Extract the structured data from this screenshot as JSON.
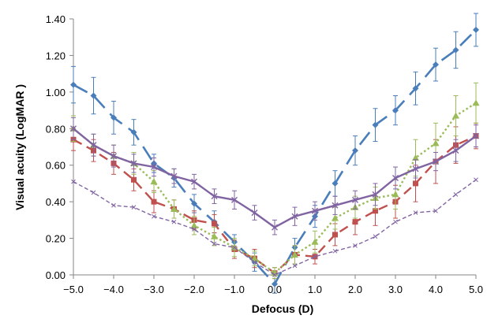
{
  "chart_data": {
    "type": "line",
    "xlabel": "Defocus (D)",
    "ylabel": "Visual acuity (LogMAR )",
    "xlim": [
      -5.0,
      5.0
    ],
    "ylim": [
      0.0,
      1.4
    ],
    "grid": false,
    "legend": "none",
    "x_tick_labels": [
      "−5.0",
      "−4.0",
      "−3.0",
      "−2.0",
      "−1.0",
      "0.0",
      "1.0",
      "2.0",
      "3.0",
      "4.0",
      "5.0"
    ],
    "y_tick_labels": [
      "0.00",
      "0.20",
      "0.40",
      "0.60",
      "0.80",
      "1.00",
      "1.20",
      "1.40"
    ],
    "x": [
      -5.0,
      -4.5,
      -4.0,
      -3.5,
      -3.0,
      -2.5,
      -2.0,
      -1.5,
      -1.0,
      -0.5,
      0.0,
      0.5,
      1.0,
      1.5,
      2.0,
      2.5,
      3.0,
      3.5,
      4.0,
      4.5,
      5.0
    ],
    "series": [
      {
        "color": "#4a7ebb",
        "dash": "long-dash",
        "marker": "diamond",
        "values": [
          1.04,
          0.98,
          0.86,
          0.78,
          0.61,
          0.53,
          0.39,
          0.29,
          0.18,
          0.07,
          -0.05,
          0.15,
          0.32,
          0.5,
          0.68,
          0.82,
          0.9,
          1.02,
          1.15,
          1.23,
          1.34
        ],
        "errors": [
          0.1,
          0.1,
          0.09,
          0.07,
          0.05,
          0.05,
          0.05,
          0.06,
          0.04,
          0.05,
          0.05,
          0.05,
          0.06,
          0.07,
          0.08,
          0.09,
          0.08,
          0.09,
          0.09,
          0.1,
          0.09
        ]
      },
      {
        "color": "#c0504d",
        "dash": "dash",
        "marker": "square",
        "values": [
          0.74,
          0.68,
          0.61,
          0.52,
          0.4,
          0.36,
          0.3,
          0.28,
          0.14,
          0.09,
          0.01,
          0.11,
          0.1,
          0.22,
          0.29,
          0.35,
          0.4,
          0.5,
          0.62,
          0.71,
          0.76
        ],
        "errors": [
          0.06,
          0.06,
          0.06,
          0.06,
          0.06,
          0.05,
          0.05,
          0.05,
          0.05,
          0.05,
          0.03,
          0.05,
          0.04,
          0.06,
          0.07,
          0.08,
          0.09,
          0.1,
          0.12,
          0.1,
          0.07
        ]
      },
      {
        "color": "#9bbb59",
        "dash": "dot",
        "marker": "triangle",
        "values": [
          0.8,
          0.71,
          0.65,
          0.61,
          0.51,
          0.36,
          0.27,
          0.21,
          0.15,
          0.09,
          0.01,
          0.11,
          0.18,
          0.31,
          0.37,
          0.42,
          0.44,
          0.64,
          0.72,
          0.87,
          0.94
        ],
        "errors": [
          0.07,
          0.06,
          0.06,
          0.06,
          0.06,
          0.05,
          0.05,
          0.05,
          0.05,
          0.04,
          0.03,
          0.05,
          0.06,
          0.06,
          0.06,
          0.06,
          0.08,
          0.1,
          0.11,
          0.11,
          0.11
        ]
      },
      {
        "color": "#8064a2",
        "dash": "solid",
        "marker": "x",
        "values": [
          0.8,
          0.71,
          0.65,
          0.61,
          0.59,
          0.54,
          0.51,
          0.43,
          0.41,
          0.34,
          0.26,
          0.32,
          0.35,
          0.38,
          0.41,
          0.44,
          0.53,
          0.58,
          0.62,
          0.68,
          0.76
        ],
        "errors": [
          0.06,
          0.06,
          0.06,
          0.05,
          0.05,
          0.04,
          0.04,
          0.04,
          0.05,
          0.04,
          0.04,
          0.05,
          0.05,
          0.05,
          0.05,
          0.06,
          0.06,
          0.05,
          0.05,
          0.06,
          0.06
        ]
      },
      {
        "color": "#8064a2",
        "dash": "short-dash",
        "marker": "small-x",
        "values": [
          0.51,
          0.45,
          0.38,
          0.37,
          0.32,
          0.29,
          0.25,
          0.17,
          0.15,
          0.07,
          0.0,
          0.05,
          0.1,
          0.13,
          0.16,
          0.21,
          0.29,
          0.34,
          0.35,
          0.44,
          0.52
        ],
        "errors": []
      }
    ]
  }
}
